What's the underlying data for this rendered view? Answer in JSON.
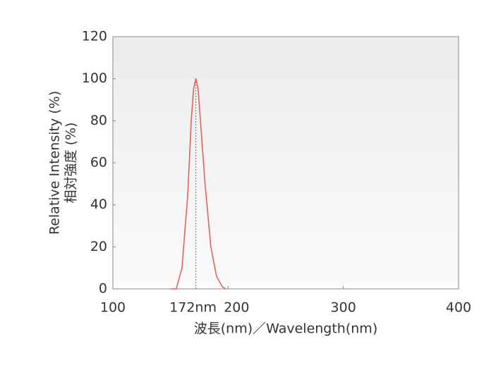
{
  "chart_data": {
    "type": "line",
    "y_label": [
      "Relative Intensity (%)",
      "相対強度 (%)"
    ],
    "x_label": "波長(nm)／Wavelength(nm)",
    "x": [
      150,
      155,
      160,
      165,
      168,
      170,
      172,
      174,
      176,
      180,
      185,
      190,
      195,
      198
    ],
    "values": [
      0,
      0,
      10,
      45,
      80,
      95,
      100,
      95,
      80,
      50,
      20,
      6,
      1,
      0
    ],
    "color": "#e2625e",
    "xlim": [
      100,
      400
    ],
    "xticks": [
      100,
      200,
      300,
      400
    ],
    "ylim": [
      0,
      120
    ],
    "yticks": [
      0,
      20,
      40,
      60,
      80,
      100,
      120
    ],
    "annotations": [
      {
        "x": 172,
        "text": "172nm"
      }
    ],
    "grid": false
  }
}
